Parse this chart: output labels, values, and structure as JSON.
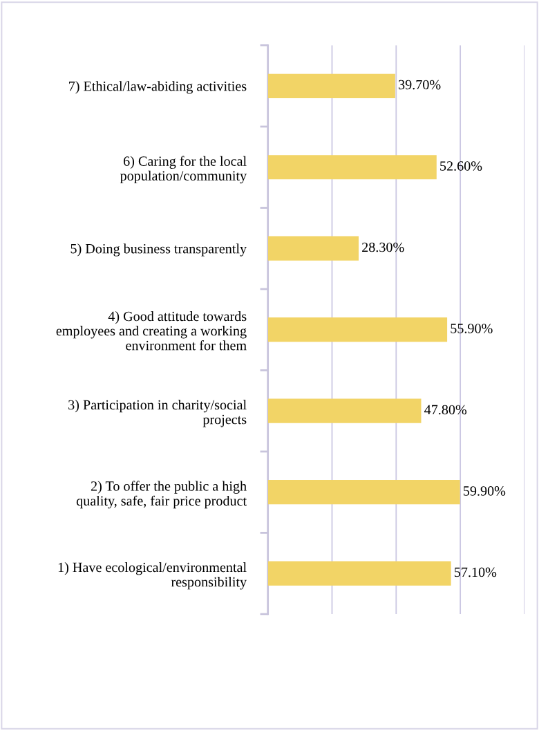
{
  "chart_data": {
    "type": "bar",
    "orientation": "horizontal",
    "categories": [
      "7) Ethical/law-abiding activities",
      "6) Caring for the local\npopulation/community",
      "5) Doing business transparently",
      "4) Good attitude towards\nemployees and creating a working\nenvironment for them",
      "3) Participation in charity/social\nprojects",
      "2) To offer the public a high\nquality, safe, fair price product",
      "1) Have ecological/environmental\nresponsibility"
    ],
    "values": [
      39.7,
      52.6,
      28.3,
      55.9,
      47.8,
      59.9,
      57.1
    ],
    "value_labels": [
      "39.70%",
      "52.60%",
      "28.30%",
      "55.90%",
      "47.80%",
      "59.90%",
      "57.10%"
    ],
    "color": "#f2d466",
    "xlim": [
      0,
      80
    ],
    "xticks": [
      {
        "value": 0,
        "label": null
      },
      {
        "value": 20,
        "label": null
      },
      {
        "value": 40,
        "label": null
      },
      {
        "value": 60,
        "label": null
      },
      {
        "value": 80,
        "label": null
      }
    ],
    "tick_labels": "y",
    "grid": "x"
  }
}
